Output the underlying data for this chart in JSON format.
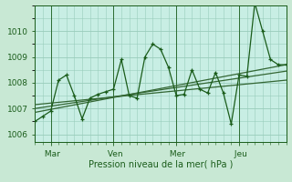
{
  "bg_color": "#c8e8d4",
  "plot_bg_color": "#c8eee4",
  "grid_color": "#99ccbb",
  "line_color": "#1a5c1a",
  "trend_color": "#336633",
  "xlabel": "Pression niveau de la mer( hPa )",
  "yticks": [
    1006,
    1007,
    1008,
    1009,
    1010
  ],
  "ylim": [
    1005.7,
    1011.0
  ],
  "xlim": [
    0,
    96
  ],
  "xtick_positions": [
    6,
    30,
    54,
    78
  ],
  "xtick_labels": [
    " Mar",
    " Ven",
    " Mer",
    " Jeu"
  ],
  "minor_xtick_step": 3,
  "x_data": [
    0,
    3,
    6,
    9,
    12,
    15,
    18,
    21,
    24,
    27,
    30,
    33,
    36,
    39,
    42,
    45,
    48,
    51,
    54,
    57,
    60,
    63,
    66,
    69,
    72,
    75,
    78,
    81,
    84,
    87,
    90,
    93,
    96
  ],
  "y_data": [
    1006.5,
    1006.7,
    1006.9,
    1008.1,
    1008.3,
    1007.5,
    1006.6,
    1007.4,
    1007.55,
    1007.65,
    1007.75,
    1008.9,
    1007.5,
    1007.4,
    1009.0,
    1009.5,
    1009.3,
    1008.6,
    1007.5,
    1007.55,
    1008.5,
    1007.75,
    1007.6,
    1008.4,
    1007.6,
    1006.4,
    1008.3,
    1008.25,
    1011.1,
    1010.0,
    1008.9,
    1008.7,
    1008.7
  ],
  "trend1_x": [
    0,
    96
  ],
  "trend1_y": [
    1006.85,
    1008.7
  ],
  "trend2_x": [
    0,
    96
  ],
  "trend2_y": [
    1007.0,
    1008.45
  ],
  "trend3_x": [
    0,
    96
  ],
  "trend3_y": [
    1007.15,
    1008.1
  ]
}
